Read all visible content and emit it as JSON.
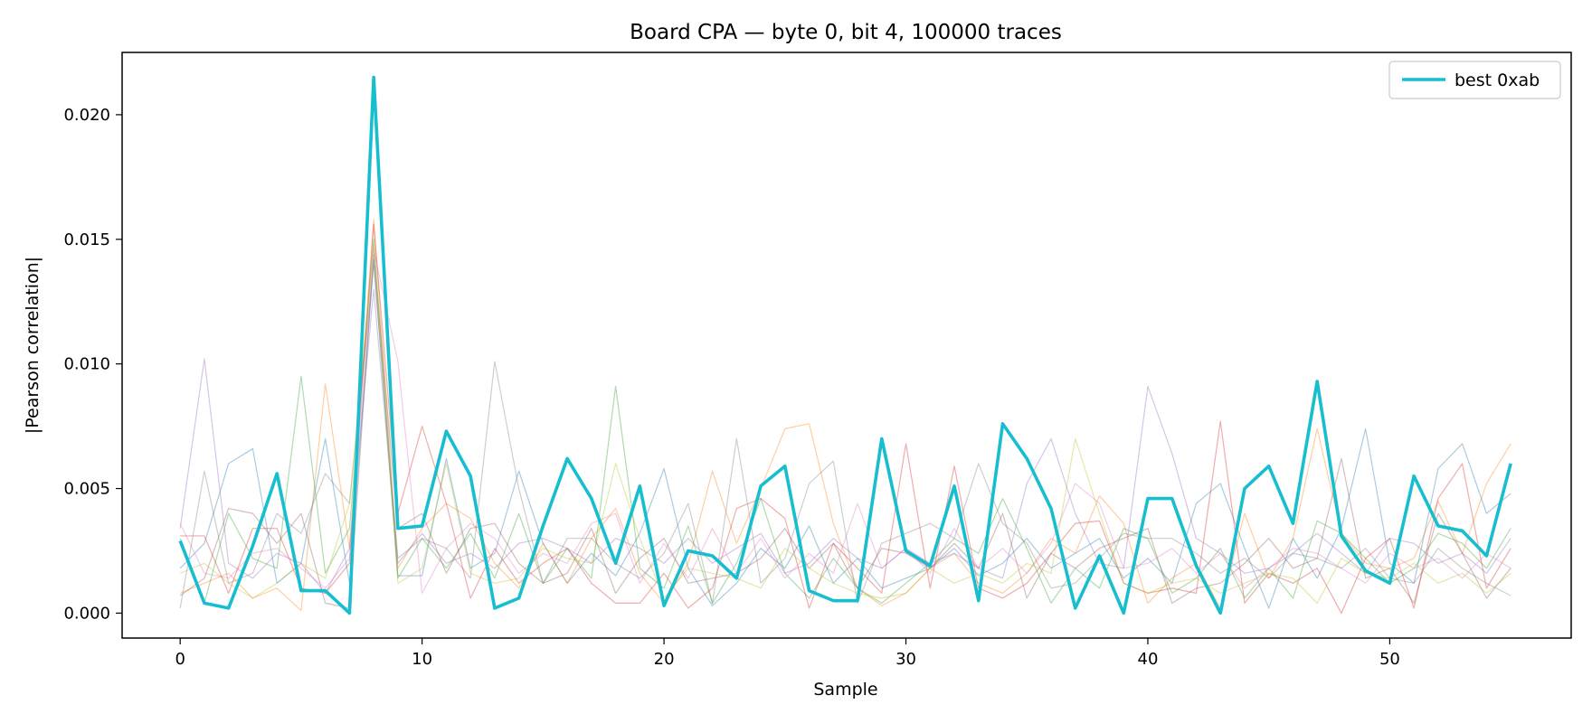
{
  "chart_data": {
    "type": "line",
    "title": "Board CPA — byte 0, bit 4, 100000 traces",
    "xlabel": "Sample",
    "ylabel": "|Pearson correlation|",
    "xlim": [
      -2.4,
      57.5
    ],
    "ylim": [
      -0.001,
      0.0225
    ],
    "xticks": [
      0,
      10,
      20,
      30,
      40,
      50
    ],
    "xtick_labels": [
      "0",
      "10",
      "20",
      "30",
      "40",
      "50"
    ],
    "yticks": [
      0.0,
      0.005,
      0.01,
      0.015,
      0.02
    ],
    "ytick_labels": [
      "0.000",
      "0.005",
      "0.010",
      "0.015",
      "0.020"
    ],
    "grid": false,
    "legend": {
      "position": "top-right",
      "entries": [
        "best 0xab"
      ]
    },
    "highlight_color": "#17becf",
    "background_colors": [
      "#1f77b4",
      "#ff7f0e",
      "#2ca02c",
      "#d62728",
      "#9467bd",
      "#8c564b",
      "#e377c2",
      "#7f7f7f",
      "#bcbd22"
    ],
    "x": [
      0,
      1,
      2,
      3,
      4,
      5,
      6,
      7,
      8,
      9,
      10,
      11,
      12,
      13,
      14,
      15,
      16,
      17,
      18,
      19,
      20,
      21,
      22,
      23,
      24,
      25,
      26,
      27,
      28,
      29,
      30,
      31,
      32,
      33,
      34,
      35,
      36,
      37,
      38,
      39,
      40,
      41,
      42,
      43,
      44,
      45,
      46,
      47,
      48,
      49,
      50,
      51,
      52,
      53,
      54,
      55
    ],
    "series": [
      {
        "name": "best 0xab",
        "highlight": true,
        "values": [
          0.0029,
          0.0004,
          0.0002,
          0.0027,
          0.0056,
          0.0009,
          0.0009,
          0.0,
          0.0215,
          0.0034,
          0.0035,
          0.0073,
          0.0055,
          0.0002,
          0.0006,
          0.0035,
          0.0062,
          0.0046,
          0.002,
          0.0051,
          0.0003,
          0.0025,
          0.0023,
          0.0014,
          0.0051,
          0.0059,
          0.0009,
          0.0005,
          0.0005,
          0.007,
          0.0025,
          0.0019,
          0.0051,
          0.0005,
          0.0076,
          0.0062,
          0.0042,
          0.0002,
          0.0023,
          0.0,
          0.0046,
          0.0046,
          0.0019,
          0.0,
          0.005,
          0.0059,
          0.0036,
          0.0093,
          0.0031,
          0.0017,
          0.0012,
          0.0055,
          0.0035,
          0.0033,
          0.0023,
          0.006
        ]
      },
      {
        "values": [
          0.0018,
          0.0028,
          0.006,
          0.0066,
          0.0012,
          0.002,
          0.007,
          0.0012,
          0.0142,
          0.0015,
          0.0015,
          0.0062,
          0.0018,
          0.0024,
          0.0057,
          0.0028,
          0.0012,
          0.0024,
          0.0015,
          0.0032,
          0.0058,
          0.0018,
          0.0003,
          0.0012,
          0.0026,
          0.0018,
          0.0035,
          0.0012,
          0.0022,
          0.001,
          0.0014,
          0.0018,
          0.0026,
          0.0015,
          0.002,
          0.003,
          0.0018,
          0.0024,
          0.003,
          0.0014,
          0.0022,
          0.0012,
          0.0044,
          0.0052,
          0.0026,
          0.0002,
          0.003,
          0.0014,
          0.0034,
          0.0074,
          0.002,
          0.0012,
          0.0058,
          0.0068,
          0.004,
          0.0048
        ]
      },
      {
        "values": [
          0.0008,
          0.0012,
          0.0016,
          0.0006,
          0.001,
          0.0001,
          0.0092,
          0.0026,
          0.0158,
          0.0018,
          0.0034,
          0.0044,
          0.0038,
          0.002,
          0.001,
          0.0028,
          0.0012,
          0.003,
          0.0042,
          0.0016,
          0.0004,
          0.002,
          0.0057,
          0.0028,
          0.005,
          0.0074,
          0.0076,
          0.0036,
          0.001,
          0.0003,
          0.0008,
          0.0018,
          0.0024,
          0.0012,
          0.0008,
          0.0016,
          0.003,
          0.0024,
          0.0047,
          0.0036,
          0.0004,
          0.0014,
          0.002,
          0.0002,
          0.004,
          0.0014,
          0.003,
          0.0074,
          0.0032,
          0.002,
          0.0018,
          0.0022,
          0.0045,
          0.0024,
          0.0052,
          0.0068
        ]
      },
      {
        "values": [
          0.003,
          0.0004,
          0.004,
          0.0022,
          0.0018,
          0.0095,
          0.0016,
          0.0034,
          0.015,
          0.0014,
          0.003,
          0.0018,
          0.0032,
          0.0014,
          0.004,
          0.0012,
          0.0026,
          0.0014,
          0.0091,
          0.0018,
          0.001,
          0.0035,
          0.0004,
          0.002,
          0.0046,
          0.0016,
          0.0006,
          0.0022,
          0.001,
          0.0004,
          0.0012,
          0.002,
          0.003,
          0.0024,
          0.0046,
          0.0026,
          0.0004,
          0.0018,
          0.001,
          0.0034,
          0.003,
          0.0008,
          0.0014,
          0.0026,
          0.0006,
          0.0018,
          0.0006,
          0.0037,
          0.0032,
          0.0022,
          0.0012,
          0.0018,
          0.0032,
          0.0028,
          0.0018,
          0.0034
        ]
      },
      {
        "values": [
          0.0031,
          0.0031,
          0.0008,
          0.0034,
          0.0034,
          0.001,
          0.0008,
          0.002,
          0.0156,
          0.004,
          0.0075,
          0.0044,
          0.0006,
          0.0026,
          0.0012,
          0.002,
          0.0026,
          0.0012,
          0.0004,
          0.0004,
          0.0016,
          0.0002,
          0.001,
          0.0042,
          0.0046,
          0.0038,
          0.0002,
          0.0028,
          0.0018,
          0.0008,
          0.0068,
          0.001,
          0.0059,
          0.001,
          0.0006,
          0.0012,
          0.0024,
          0.0036,
          0.0037,
          0.0012,
          0.0008,
          0.001,
          0.0008,
          0.0077,
          0.0004,
          0.0016,
          0.0012,
          0.0018,
          0.0,
          0.0022,
          0.003,
          0.0002,
          0.0046,
          0.006,
          0.001,
          0.0026
        ]
      },
      {
        "values": [
          0.0034,
          0.0102,
          0.002,
          0.0014,
          0.0024,
          0.002,
          0.0008,
          0.0026,
          0.013,
          0.002,
          0.0032,
          0.002,
          0.0024,
          0.0018,
          0.0028,
          0.003,
          0.0026,
          0.002,
          0.003,
          0.0026,
          0.002,
          0.003,
          0.002,
          0.0026,
          0.0032,
          0.0016,
          0.002,
          0.003,
          0.0022,
          0.0018,
          0.0026,
          0.002,
          0.0024,
          0.0018,
          0.0014,
          0.0052,
          0.007,
          0.004,
          0.002,
          0.0018,
          0.0091,
          0.0064,
          0.003,
          0.0024,
          0.0016,
          0.0018,
          0.0024,
          0.0032,
          0.0024,
          0.0016,
          0.003,
          0.0028,
          0.002,
          0.0024,
          0.0016,
          0.003
        ]
      },
      {
        "values": [
          0.0007,
          0.0014,
          0.0042,
          0.004,
          0.0028,
          0.004,
          0.0004,
          0.0002,
          0.0144,
          0.0034,
          0.004,
          0.0016,
          0.0034,
          0.0036,
          0.002,
          0.0012,
          0.0016,
          0.0034,
          0.0008,
          0.0022,
          0.003,
          0.0012,
          0.0014,
          0.0016,
          0.0022,
          0.0034,
          0.0018,
          0.0028,
          0.001,
          0.0026,
          0.0024,
          0.0018,
          0.0028,
          0.0018,
          0.004,
          0.0006,
          0.0024,
          0.0018,
          0.0026,
          0.003,
          0.0034,
          0.0004,
          0.001,
          0.0012,
          0.002,
          0.003,
          0.0018,
          0.0022,
          0.0062,
          0.0014,
          0.0018,
          0.0004,
          0.004,
          0.0024,
          0.0006,
          0.0018
        ]
      },
      {
        "values": [
          0.0036,
          0.0016,
          0.0014,
          0.0024,
          0.0026,
          0.0018,
          0.001,
          0.0022,
          0.0146,
          0.0101,
          0.0008,
          0.0026,
          0.0036,
          0.003,
          0.0016,
          0.0024,
          0.002,
          0.0036,
          0.004,
          0.0012,
          0.0028,
          0.0014,
          0.0034,
          0.0016,
          0.003,
          0.0014,
          0.0024,
          0.0016,
          0.0044,
          0.0018,
          0.0026,
          0.0016,
          0.0034,
          0.0018,
          0.0026,
          0.0016,
          0.0028,
          0.0052,
          0.0044,
          0.0018,
          0.002,
          0.0026,
          0.0016,
          0.0024,
          0.001,
          0.0018,
          0.0026,
          0.0024,
          0.0018,
          0.0012,
          0.0024,
          0.0018,
          0.0022,
          0.0014,
          0.0024,
          0.0018
        ]
      },
      {
        "values": [
          0.0002,
          0.0057,
          0.0012,
          0.0016,
          0.004,
          0.0032,
          0.0056,
          0.0044,
          0.014,
          0.0022,
          0.003,
          0.0026,
          0.0014,
          0.0101,
          0.005,
          0.0012,
          0.003,
          0.003,
          0.002,
          0.0014,
          0.0024,
          0.0044,
          0.0004,
          0.007,
          0.0012,
          0.0022,
          0.0052,
          0.0061,
          0.0004,
          0.0028,
          0.0032,
          0.0036,
          0.003,
          0.006,
          0.0036,
          0.0028,
          0.001,
          0.0012,
          0.0022,
          0.0032,
          0.003,
          0.003,
          0.0024,
          0.0016,
          0.0022,
          0.0014,
          0.0024,
          0.0022,
          0.0018,
          0.0026,
          0.0014,
          0.0012,
          0.0026,
          0.0018,
          0.0012,
          0.0007
        ]
      },
      {
        "values": [
          0.0016,
          0.002,
          0.0012,
          0.0006,
          0.0012,
          0.002,
          0.0014,
          0.0044,
          0.0148,
          0.0012,
          0.0018,
          0.006,
          0.0016,
          0.0012,
          0.0014,
          0.0026,
          0.0022,
          0.002,
          0.006,
          0.003,
          0.0006,
          0.0018,
          0.0016,
          0.0014,
          0.001,
          0.0026,
          0.0018,
          0.0012,
          0.0008,
          0.0006,
          0.0008,
          0.0018,
          0.0012,
          0.0016,
          0.0012,
          0.002,
          0.0016,
          0.007,
          0.004,
          0.0012,
          0.0008,
          0.0012,
          0.0014,
          0.0008,
          0.0012,
          0.0016,
          0.0014,
          0.0004,
          0.0022,
          0.0016,
          0.0014,
          0.002,
          0.0012,
          0.0016,
          0.0008,
          0.0016
        ]
      }
    ]
  }
}
